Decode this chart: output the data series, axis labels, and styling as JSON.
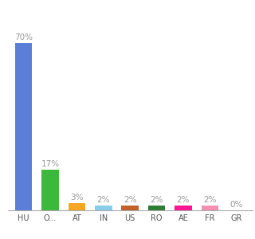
{
  "categories": [
    "HU",
    "O...",
    "AT",
    "IN",
    "US",
    "RO",
    "AE",
    "FR",
    "GR"
  ],
  "values": [
    70,
    17,
    3,
    2,
    2,
    2,
    2,
    2,
    0
  ],
  "bar_colors": [
    "#5b7ed7",
    "#3cb83c",
    "#f5a623",
    "#87ceeb",
    "#c0622a",
    "#2e7d32",
    "#ff1493",
    "#f48fb1",
    "#b0bec5"
  ],
  "labels": [
    "70%",
    "17%",
    "3%",
    "2%",
    "2%",
    "2%",
    "2%",
    "2%",
    "0%"
  ],
  "ylim": [
    0,
    80
  ],
  "label_color": "#999999",
  "label_fontsize": 7.5,
  "tick_fontsize": 7.0,
  "background_color": "#ffffff"
}
